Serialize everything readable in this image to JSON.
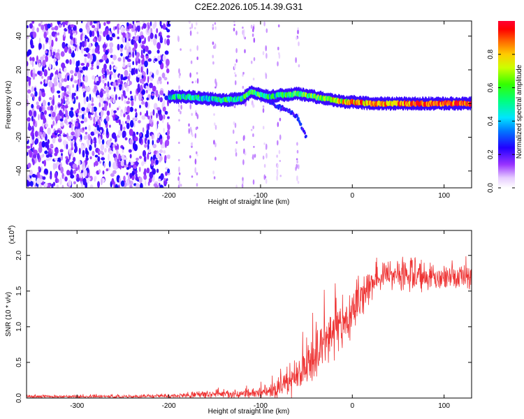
{
  "figure_title": "C2E2.2026.105.14.39.G31",
  "chart_data": [
    {
      "type": "heatmap",
      "title": "C2E2.2026.105.14.39.G31",
      "xlabel": "Height of straight line (km)",
      "ylabel": "Frequency (Hz)",
      "xlim": [
        -355,
        130
      ],
      "ylim": [
        -50,
        49
      ],
      "xticks": [
        -300,
        -200,
        -100,
        0,
        100
      ],
      "yticks": [
        -40,
        -20,
        0,
        20,
        40
      ],
      "colorbar": {
        "label": "Normalized spectral amplitude",
        "range": [
          0.0,
          1.0
        ],
        "ticks": [
          0.0,
          0.2,
          0.4,
          0.6,
          0.8
        ]
      },
      "features": {
        "noise_region_km": [
          -355,
          -200
        ],
        "sparse_region_km": [
          -200,
          -90
        ],
        "signal_start_km": -200,
        "signal_trace": {
          "x": [
            -200,
            -180,
            -160,
            -140,
            -120,
            -110,
            -100,
            -90,
            -80,
            -70,
            -60,
            -50,
            -40,
            -30,
            -20,
            -10,
            0,
            20,
            40,
            60,
            80,
            100,
            120,
            130
          ],
          "freq_hz": [
            4,
            4,
            3,
            2,
            3,
            7,
            5,
            4,
            5,
            5,
            6,
            5,
            4,
            3,
            2,
            1,
            1,
            0,
            0,
            0,
            0,
            0,
            0,
            0
          ],
          "amplitude": [
            0.4,
            0.45,
            0.45,
            0.5,
            0.5,
            0.55,
            0.55,
            0.5,
            0.5,
            0.55,
            0.55,
            0.6,
            0.6,
            0.65,
            0.7,
            0.75,
            0.8,
            0.85,
            0.85,
            0.9,
            0.9,
            0.95,
            0.95,
            0.95
          ]
        },
        "secondary_branch": {
          "x": [
            -100,
            -90,
            -80,
            -70,
            -60,
            -55,
            -50
          ],
          "freq_hz": [
            5,
            1,
            -2,
            -4,
            -8,
            -14,
            -20
          ]
        }
      }
    },
    {
      "type": "line",
      "xlabel": "Height of straight line (km)",
      "ylabel": "SNR (10 * v/v)",
      "y_multiplier_label": "(x10",
      "y_multiplier_exponent": "4",
      "y_multiplier_close": ")",
      "xlim": [
        -355,
        130
      ],
      "ylim": [
        0,
        2.35
      ],
      "xticks": [
        -300,
        -200,
        -100,
        0,
        100
      ],
      "yticks": [
        0.0,
        0.5,
        1.0,
        1.5,
        2.0
      ],
      "ytick_labels": [
        "0.0",
        "0.5",
        "1.0",
        "1.5",
        "2.0"
      ],
      "series": [
        {
          "name": "SNR",
          "color": "#ee3333",
          "x": [
            -355,
            -300,
            -250,
            -200,
            -180,
            -160,
            -140,
            -120,
            -100,
            -90,
            -80,
            -70,
            -60,
            -50,
            -40,
            -30,
            -20,
            -10,
            0,
            10,
            20,
            30,
            40,
            50,
            60,
            70,
            80,
            90,
            100,
            110,
            120,
            130
          ],
          "mean": [
            0.02,
            0.02,
            0.02,
            0.03,
            0.04,
            0.05,
            0.05,
            0.06,
            0.08,
            0.1,
            0.14,
            0.22,
            0.3,
            0.45,
            0.62,
            0.78,
            0.92,
            1.05,
            1.2,
            1.42,
            1.58,
            1.68,
            1.72,
            1.73,
            1.74,
            1.72,
            1.71,
            1.7,
            1.7,
            1.7,
            1.71,
            1.7
          ],
          "spread": [
            0.02,
            0.02,
            0.02,
            0.03,
            0.04,
            0.05,
            0.05,
            0.06,
            0.08,
            0.1,
            0.14,
            0.2,
            0.24,
            0.3,
            0.35,
            0.4,
            0.45,
            0.45,
            0.3,
            0.25,
            0.22,
            0.2,
            0.2,
            0.22,
            0.24,
            0.24,
            0.2,
            0.18,
            0.16,
            0.16,
            0.16,
            0.16
          ]
        }
      ]
    }
  ]
}
